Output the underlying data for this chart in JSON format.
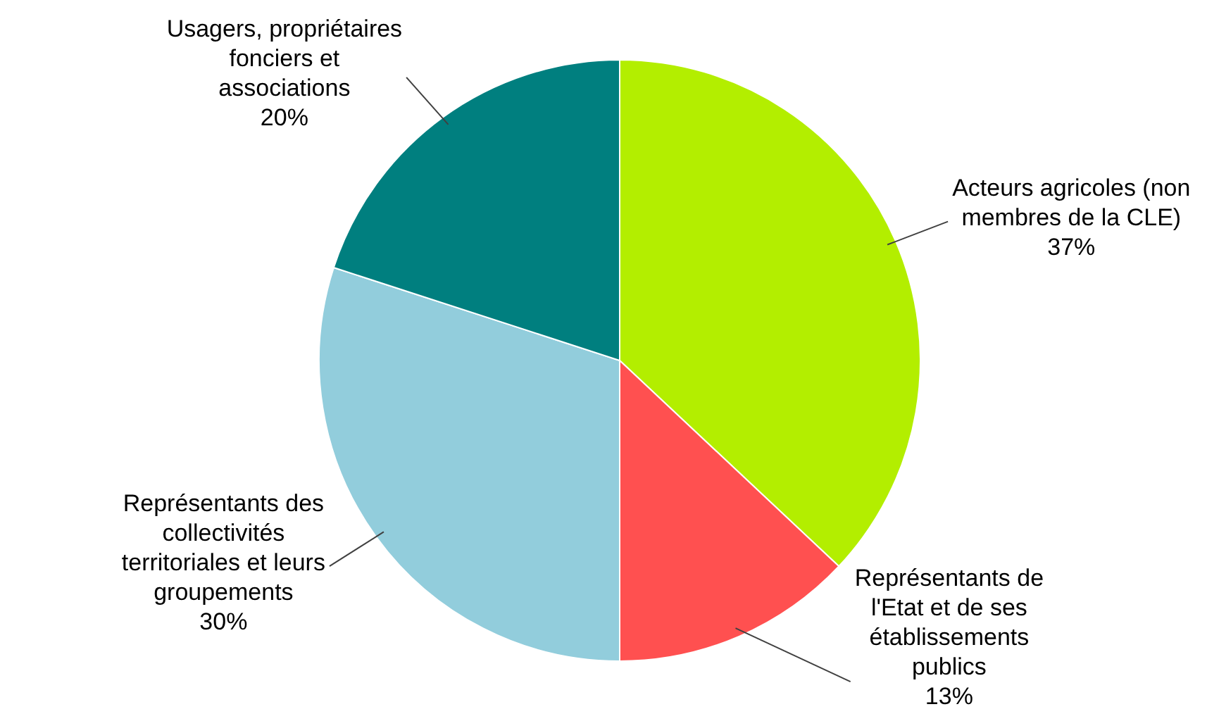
{
  "chart_data": {
    "type": "pie",
    "categories": [
      "Acteurs agricoles (non membres de la CLE)",
      "Représentants de l'Etat et de ses établissements publics",
      "Représentants des collectivités territoriales et leurs groupements",
      "Usagers, propriétaires fonciers et associations"
    ],
    "values": [
      37,
      13,
      30,
      20
    ],
    "value_labels": [
      "37%",
      "13%",
      "30%",
      "20%"
    ],
    "colors": [
      "#b3ee00",
      "#ff5050",
      "#92cddc",
      "#007f7f"
    ],
    "legend": false
  }
}
